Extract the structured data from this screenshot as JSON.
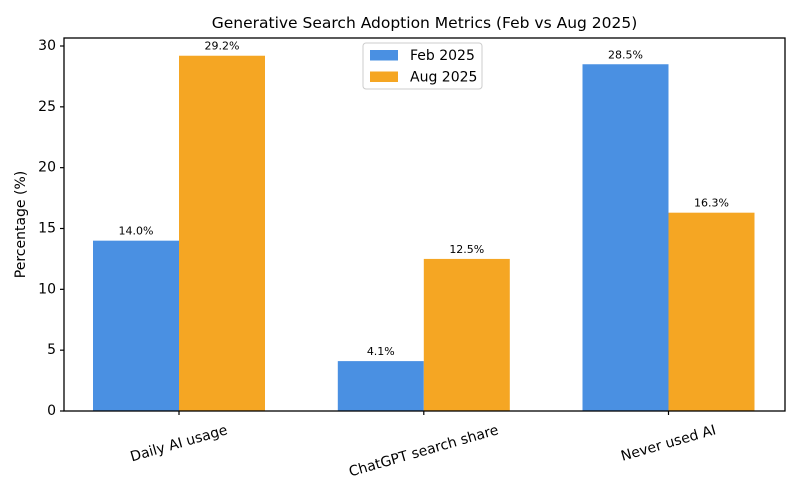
{
  "figure": {
    "background": "#ffffff"
  },
  "chart_data": {
    "type": "bar",
    "title": "Generative Search Adoption Metrics (Feb vs Aug 2025)",
    "xlabel": "",
    "ylabel": "Percentage (%)",
    "categories": [
      "Daily AI usage",
      "ChatGPT search share",
      "Never used AI"
    ],
    "series": [
      {
        "name": "Feb 2025",
        "color": "#4A90E2",
        "values": [
          14.0,
          4.1,
          28.5
        ],
        "labels": [
          "14.0%",
          "4.1%",
          "28.5%"
        ]
      },
      {
        "name": "Aug 2025",
        "color": "#F5A623",
        "values": [
          29.2,
          12.5,
          16.3
        ],
        "labels": [
          "29.2%",
          "12.5%",
          "16.3%"
        ]
      }
    ],
    "yticks": [
      0,
      5,
      10,
      15,
      20,
      25,
      30
    ],
    "ylim": [
      0,
      30.7
    ],
    "grid": false,
    "legend_position": "upper center",
    "tick_label_rotation_deg": 16,
    "axis_color": "#000000",
    "text_color": "#000000",
    "legend_border_color": "#cccccc",
    "legend_background": "#ffffff"
  }
}
